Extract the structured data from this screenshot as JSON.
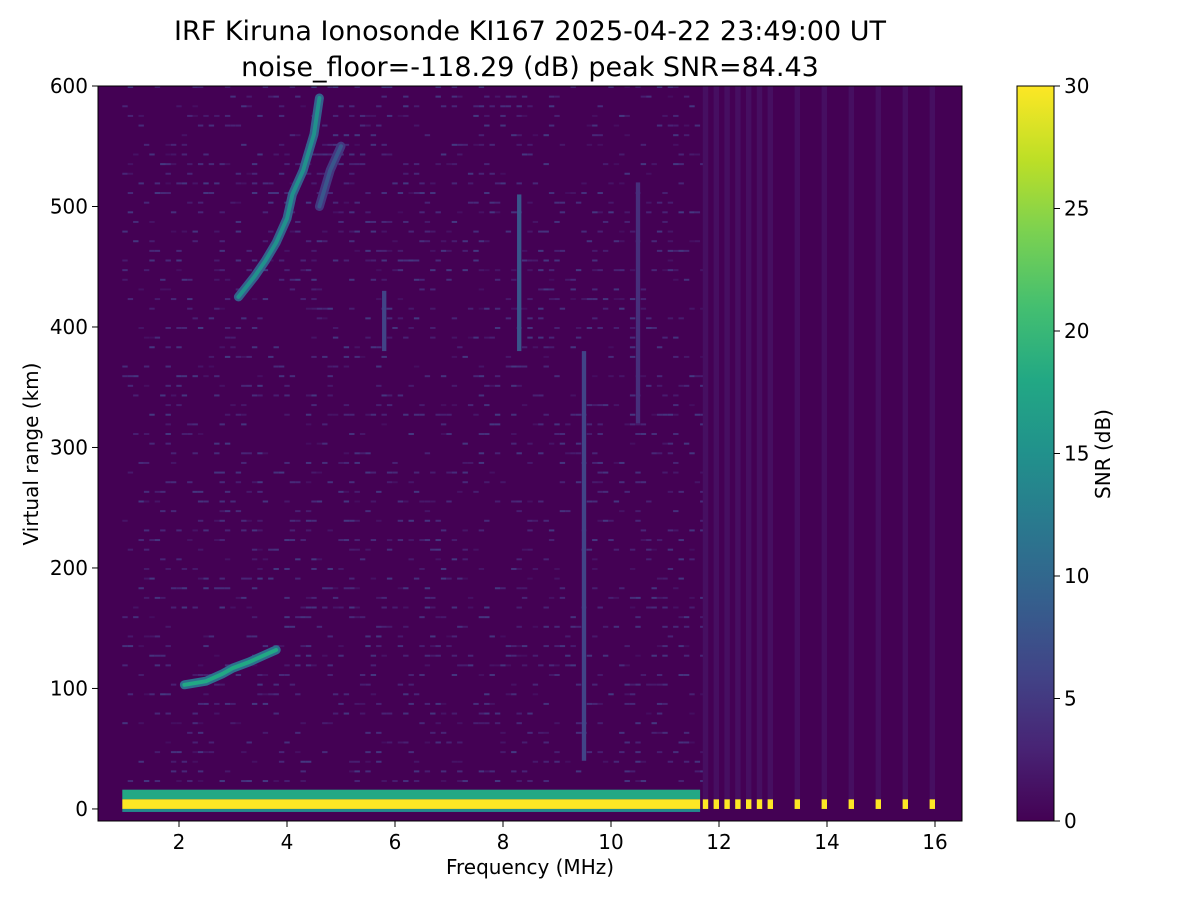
{
  "chart_data": [
    {
      "type": "heatmap",
      "title": "IRF Kiruna Ionosonde KI167 2025-04-22 23:49:00  UT",
      "subtitle": "noise_floor=-118.29 (dB) peak SNR=84.43",
      "xlabel": "Frequency (MHz)",
      "ylabel": "Virtual range (km)",
      "xlim": [
        0.5,
        16.5
      ],
      "ylim": [
        -10,
        600
      ],
      "x_ticks": [
        "2",
        "4",
        "6",
        "8",
        "10",
        "12",
        "14",
        "16"
      ],
      "y_ticks": [
        "0",
        "100",
        "200",
        "300",
        "400",
        "500",
        "600"
      ],
      "grid": false,
      "colormap": "viridis",
      "data_freq_range": [
        0.95,
        16.05
      ],
      "continuous_sweep_end": 11.65,
      "discrete_channels": [
        11.75,
        11.95,
        12.15,
        12.35,
        12.55,
        12.75,
        12.95,
        13.45,
        13.95,
        14.45,
        14.95,
        15.45,
        15.95
      ],
      "ground_echo": {
        "range_km": [
          0,
          8
        ],
        "snr_db": 30
      },
      "echo_traces": [
        {
          "name": "",
          "points": [
            [
              2.1,
              103
            ],
            [
              2.5,
              106
            ],
            [
              2.8,
              112
            ],
            [
              3.0,
              117
            ],
            [
              3.3,
              122
            ],
            [
              3.6,
              128
            ],
            [
              3.8,
              132
            ]
          ],
          "snr_db": 18
        },
        {
          "name": "",
          "points": [
            [
              3.1,
              425
            ],
            [
              3.4,
              442
            ],
            [
              3.6,
              455
            ],
            [
              3.8,
              470
            ],
            [
              4.0,
              490
            ],
            [
              4.1,
              510
            ],
            [
              4.3,
              530
            ],
            [
              4.5,
              560
            ],
            [
              4.6,
              590
            ]
          ],
          "snr_db": 15
        },
        {
          "name": "",
          "points": [
            [
              4.6,
              500
            ],
            [
              4.8,
              530
            ],
            [
              5.0,
              550
            ]
          ],
          "snr_db": 8
        }
      ],
      "vertical_streaks": [
        {
          "freq": 8.3,
          "range_km": [
            380,
            510
          ],
          "snr_db": 8
        },
        {
          "freq": 9.5,
          "range_km": [
            40,
            380
          ],
          "snr_db": 6
        },
        {
          "freq": 10.5,
          "range_km": [
            320,
            520
          ],
          "snr_db": 4
        },
        {
          "freq": 5.8,
          "range_km": [
            380,
            430
          ],
          "snr_db": 6
        }
      ]
    },
    {
      "type": "colorbar",
      "label": "SNR (dB)",
      "range": [
        0,
        30
      ],
      "ticks": [
        "0",
        "5",
        "10",
        "15",
        "20",
        "25",
        "30"
      ]
    }
  ]
}
